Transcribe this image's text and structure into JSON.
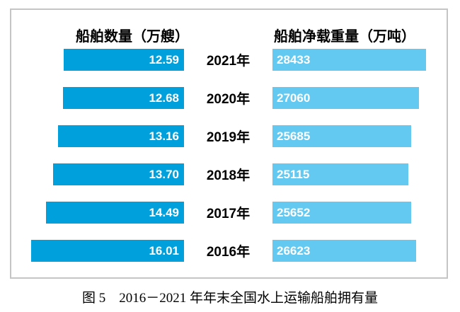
{
  "chart_data": {
    "type": "bar",
    "variant": "tornado",
    "title": "",
    "categories": [
      "2021年",
      "2020年",
      "2019年",
      "2018年",
      "2017年",
      "2016年"
    ],
    "series": [
      {
        "name": "船舶数量（万艘）",
        "side": "left",
        "values": [
          12.59,
          12.68,
          13.16,
          13.7,
          14.49,
          16.01
        ],
        "labels": [
          "12.59",
          "12.68",
          "13.16",
          "13.70",
          "14.49",
          "16.01"
        ],
        "color": "#00a0dc"
      },
      {
        "name": "船舶净载重量（万吨）",
        "side": "right",
        "values": [
          28433,
          27060,
          25685,
          25115,
          25652,
          26623
        ],
        "labels": [
          "28433",
          "27060",
          "25685",
          "25115",
          "25652",
          "26623"
        ],
        "color": "#64c9f1"
      }
    ],
    "legend_position": "column-headers-top",
    "grid": false,
    "value_labels": "inside-bar-white-bold"
  },
  "figure": {
    "caption": "图 5　2016－2021 年年末全国水上运输船舶拥有量"
  },
  "colors": {
    "left_bar": "#00a0dc",
    "right_bar": "#64c9f1",
    "chart_border": "#c5c5c5",
    "text": "#000000"
  }
}
